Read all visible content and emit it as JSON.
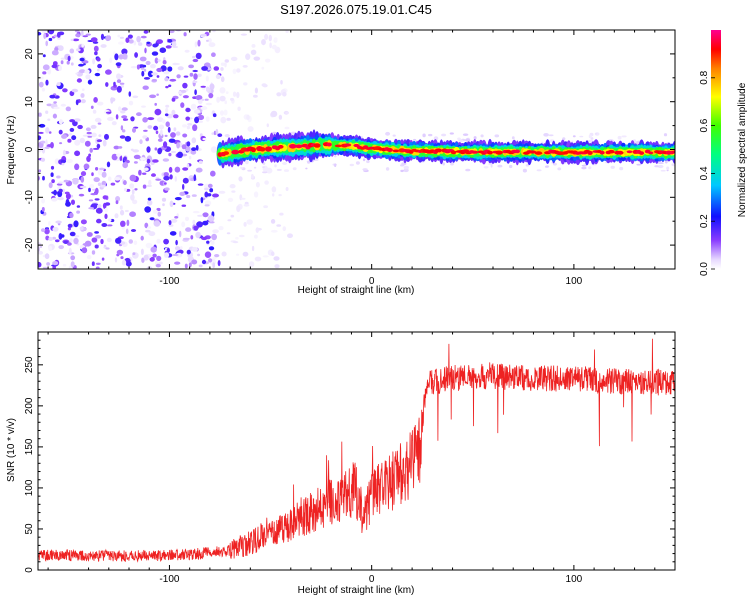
{
  "title": "S197.2026.075.19.01.C45",
  "chart_data": [
    {
      "type": "heatmap",
      "name": "spectrogram",
      "xlabel": "Height of straight line (km)",
      "ylabel": "Frequency (Hz)",
      "xlim": [
        -165,
        150
      ],
      "ylim": [
        -25,
        25
      ],
      "xticks": [
        -100,
        0,
        100
      ],
      "yticks": [
        -20,
        -10,
        0,
        10,
        20
      ],
      "colorbar": {
        "label": "Normalized spectral amplitude",
        "range": [
          0,
          1
        ],
        "ticks": [
          0.0,
          0.2,
          0.4,
          0.6,
          0.8
        ]
      },
      "features": {
        "noise_region_x": [
          -165,
          -75
        ],
        "tone_start_x": -75,
        "tone_end_x": 150,
        "tone_frequency_hz": -0.5,
        "tone_frequency_track": [
          [
            -75,
            -1.0
          ],
          [
            -60,
            0.0
          ],
          [
            -40,
            0.5
          ],
          [
            -20,
            1.0
          ],
          [
            -10,
            0.8
          ],
          [
            0,
            0.2
          ],
          [
            20,
            -0.3
          ],
          [
            50,
            -0.5
          ],
          [
            100,
            -0.6
          ],
          [
            150,
            -0.6
          ]
        ]
      }
    },
    {
      "type": "line",
      "name": "snr",
      "xlabel": "Height of straight line (km)",
      "ylabel": "SNR (10 * v/v)",
      "xlim": [
        -165,
        150
      ],
      "ylim": [
        0,
        290
      ],
      "xticks": [
        -100,
        0,
        100
      ],
      "yticks": [
        0,
        50,
        100,
        150,
        200,
        250
      ],
      "color": "#ee2222",
      "envelope": [
        [
          -165,
          18
        ],
        [
          -120,
          17
        ],
        [
          -90,
          19
        ],
        [
          -70,
          24
        ],
        [
          -55,
          38
        ],
        [
          -45,
          48
        ],
        [
          -35,
          62
        ],
        [
          -25,
          78
        ],
        [
          -15,
          88
        ],
        [
          -8,
          100
        ],
        [
          -4,
          60
        ],
        [
          0,
          92
        ],
        [
          10,
          108
        ],
        [
          20,
          130
        ],
        [
          24,
          150
        ],
        [
          26,
          205
        ],
        [
          28,
          228
        ],
        [
          40,
          234
        ],
        [
          60,
          236
        ],
        [
          80,
          234
        ],
        [
          100,
          233
        ],
        [
          120,
          230
        ],
        [
          150,
          228
        ]
      ]
    }
  ]
}
